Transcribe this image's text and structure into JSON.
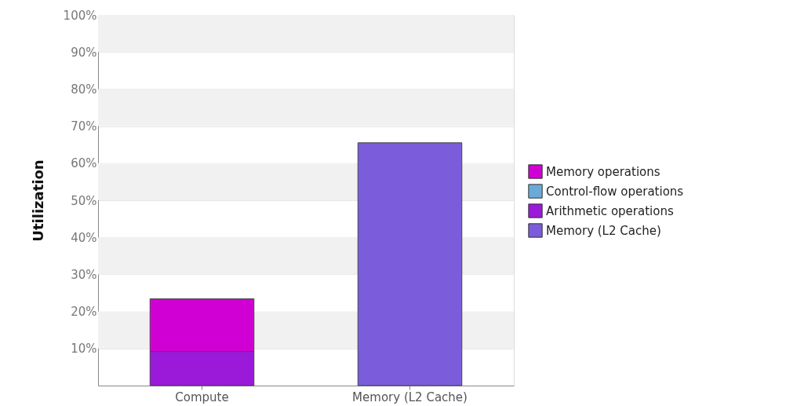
{
  "chart_data": {
    "type": "bar",
    "stacked": true,
    "ylabel": "Utilization",
    "categories": [
      "Compute",
      "Memory (L2 Cache)"
    ],
    "series": [
      {
        "name": "Memory (L2 Cache)",
        "color": "#7b5cdb",
        "values": [
          null,
          65.5
        ]
      },
      {
        "name": "Arithmetic operations",
        "color": "#9b19d9",
        "values": [
          9.2,
          null
        ]
      },
      {
        "name": "Control-flow operations",
        "color": "#6aaad8",
        "values": [
          null,
          null
        ]
      },
      {
        "name": "Memory operations",
        "color": "#d000d4",
        "values": [
          14.2,
          null
        ]
      }
    ],
    "ylim": [
      0,
      100
    ],
    "yticks": [
      {
        "value": 10,
        "label": "10%"
      },
      {
        "value": 20,
        "label": "20%"
      },
      {
        "value": 30,
        "label": "30%"
      },
      {
        "value": 40,
        "label": "40%"
      },
      {
        "value": 50,
        "label": "50%"
      },
      {
        "value": 60,
        "label": "60%"
      },
      {
        "value": 70,
        "label": "70%"
      },
      {
        "value": 80,
        "label": "80%"
      },
      {
        "value": 90,
        "label": "90%"
      },
      {
        "value": 100,
        "label": "100%"
      }
    ],
    "grid": "y",
    "legend": "right"
  }
}
